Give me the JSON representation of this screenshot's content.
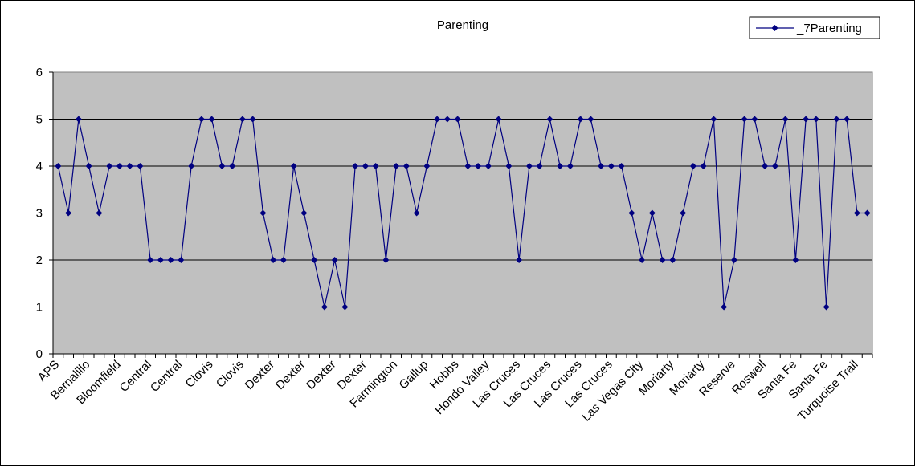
{
  "chart_data": {
    "type": "line",
    "title": "Parenting",
    "xlabel": "",
    "ylabel": "",
    "ylim": [
      0,
      6
    ],
    "yticks": [
      0,
      1,
      2,
      3,
      4,
      5,
      6
    ],
    "grid": true,
    "legend_position": "top-right",
    "colors": {
      "series": "#000080",
      "plot_background": "#c0c0c0",
      "gridline": "#000000"
    },
    "category_labels": [
      "APS",
      "Bernalillo",
      "Bloomfield",
      "Central",
      "Central",
      "Clovis",
      "Clovis",
      "Dexter",
      "Dexter",
      "Dexter",
      "Dexter",
      "Farmington",
      "Gallup",
      "Hobbs",
      "Hondo Valley",
      "Las Cruces",
      "Las Cruces",
      "Las Cruces",
      "Las Cruces",
      "Las Vegas City",
      "Moriarty",
      "Moriarty",
      "Reserve",
      "Roswell",
      "Santa Fe",
      "Santa Fe",
      "Turquoise Trail"
    ],
    "series": [
      {
        "name": "_7Parenting",
        "values": [
          4,
          3,
          5,
          4,
          3,
          4,
          4,
          4,
          4,
          2,
          2,
          2,
          2,
          4,
          5,
          5,
          4,
          4,
          5,
          5,
          3,
          2,
          2,
          4,
          3,
          2,
          1,
          2,
          1,
          4,
          4,
          4,
          2,
          4,
          4,
          3,
          4,
          5,
          5,
          5,
          4,
          4,
          4,
          5,
          4,
          2,
          4,
          4,
          5,
          4,
          4,
          5,
          5,
          4,
          4,
          4,
          3,
          2,
          3,
          2,
          2,
          3,
          4,
          4,
          5,
          1,
          2,
          5,
          5,
          4,
          4,
          5,
          2,
          5,
          5,
          1,
          5,
          5,
          3,
          3
        ]
      }
    ]
  }
}
